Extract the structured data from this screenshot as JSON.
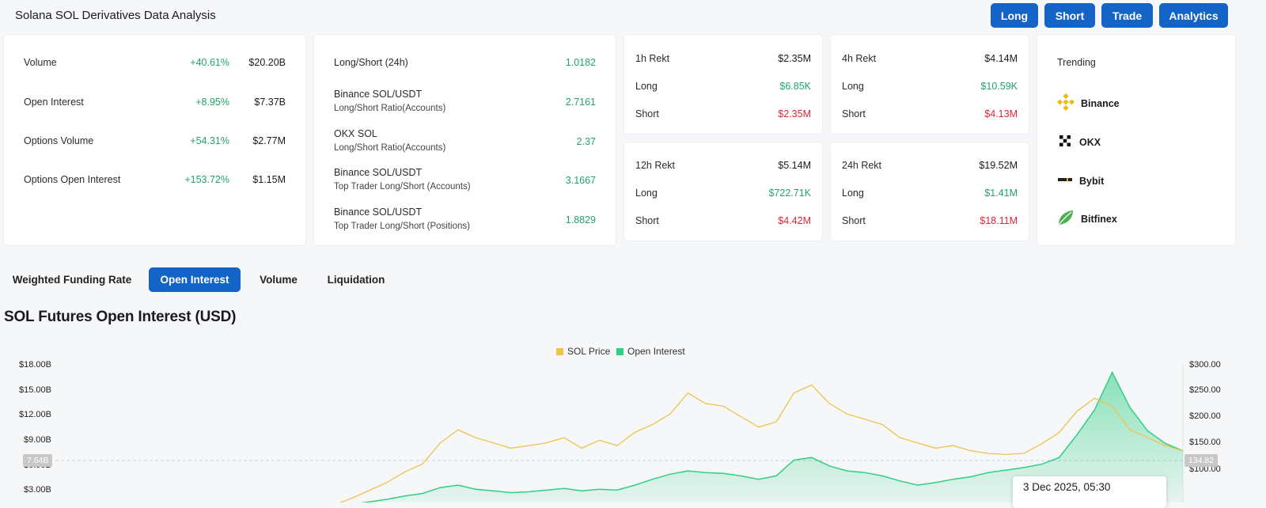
{
  "header": {
    "title": "Solana SOL Derivatives Data Analysis",
    "buttons": [
      "Long",
      "Short",
      "Trade",
      "Analytics"
    ]
  },
  "summary": {
    "rows": [
      {
        "label": "Volume",
        "change": "+40.61%",
        "value": "$20.20B"
      },
      {
        "label": "Open Interest",
        "change": "+8.95%",
        "value": "$7.37B"
      },
      {
        "label": "Options Volume",
        "change": "+54.31%",
        "value": "$2.77M"
      },
      {
        "label": "Options Open Interest",
        "change": "+153.72%",
        "value": "$1.15M"
      }
    ]
  },
  "ratios": {
    "rows": [
      {
        "label": "Long/Short (24h)",
        "sub": "",
        "value": "1.0182"
      },
      {
        "label": "Binance SOL/USDT",
        "sub": "Long/Short Ratio(Accounts)",
        "value": "2.7161"
      },
      {
        "label": "OKX SOL",
        "sub": "Long/Short Ratio(Accounts)",
        "value": "2.37"
      },
      {
        "label": "Binance SOL/USDT",
        "sub": "Top Trader Long/Short (Accounts)",
        "value": "3.1667"
      },
      {
        "label": "Binance SOL/USDT",
        "sub": "Top Trader Long/Short (Positions)",
        "value": "1.8829"
      }
    ]
  },
  "rekt": [
    {
      "period": "1h Rekt",
      "total": "$2.35M",
      "long_label": "Long",
      "long": "$6.85K",
      "short_label": "Short",
      "short": "$2.35M"
    },
    {
      "period": "4h Rekt",
      "total": "$4.14M",
      "long_label": "Long",
      "long": "$10.59K",
      "short_label": "Short",
      "short": "$4.13M"
    },
    {
      "period": "12h Rekt",
      "total": "$5.14M",
      "long_label": "Long",
      "long": "$722.71K",
      "short_label": "Short",
      "short": "$4.42M"
    },
    {
      "period": "24h Rekt",
      "total": "$19.52M",
      "long_label": "Long",
      "long": "$1.41M",
      "short_label": "Short",
      "short": "$18.11M"
    }
  ],
  "trending": {
    "title": "Trending",
    "items": [
      {
        "name": "Binance",
        "icon": "binance-icon"
      },
      {
        "name": "OKX",
        "icon": "okx-icon"
      },
      {
        "name": "Bybit",
        "icon": "bybit-icon"
      },
      {
        "name": "Bitfinex",
        "icon": "bitfinex-icon"
      }
    ]
  },
  "tabs": [
    "Weighted Funding Rate",
    "Open Interest",
    "Volume",
    "Liquidation"
  ],
  "active_tab": "Open Interest",
  "chart_data": {
    "type": "area",
    "title": "SOL Futures Open Interest (USD)",
    "legend": [
      "SOL Price",
      "Open Interest"
    ],
    "legend_position": "top-center",
    "colors": {
      "price": "#f0c24c",
      "oi": "#2fcf84"
    },
    "y_left_ticks": [
      "$18.00B",
      "$15.00B",
      "$12.00B",
      "$9.00B",
      "$6.00B",
      "$3.00B"
    ],
    "y_right_ticks": [
      "$300.00",
      "$250.00",
      "$200.00",
      "$150.00",
      "$100.00"
    ],
    "ylim_left": [
      0,
      18
    ],
    "ylim_right": [
      50,
      300
    ],
    "crosshair_left": "7.64B",
    "crosshair_right": "134.82",
    "tooltip_date": "3 Dec 2025, 05:30",
    "series": [
      {
        "name": "SOL Price",
        "values": [
          28,
          32,
          45,
          60,
          75,
          95,
          110,
          150,
          175,
          160,
          150,
          140,
          145,
          150,
          160,
          140,
          155,
          145,
          170,
          185,
          205,
          245,
          225,
          220,
          200,
          180,
          190,
          245,
          260,
          225,
          205,
          195,
          185,
          160,
          150,
          140,
          145,
          135,
          130,
          128,
          130,
          148,
          170,
          210,
          235,
          220,
          175,
          160,
          145,
          135
        ]
      },
      {
        "name": "Open Interest",
        "values": [
          0.5,
          0.8,
          1.2,
          1.5,
          1.8,
          2.2,
          2.5,
          3.2,
          3.5,
          3.0,
          2.8,
          2.6,
          2.7,
          2.9,
          3.1,
          2.8,
          3.0,
          2.9,
          3.5,
          4.2,
          4.8,
          5.2,
          5.0,
          4.9,
          4.6,
          4.2,
          4.6,
          6.5,
          6.8,
          5.8,
          5.2,
          5.0,
          4.6,
          4.0,
          3.5,
          3.8,
          4.2,
          4.5,
          5.0,
          5.3,
          5.6,
          6.0,
          6.8,
          9.5,
          12.5,
          17.0,
          12.8,
          10.0,
          8.5,
          7.6
        ]
      }
    ]
  }
}
